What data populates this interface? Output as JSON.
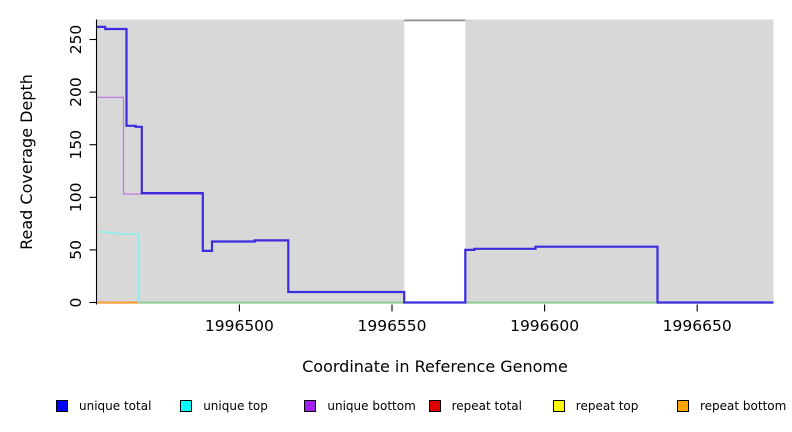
{
  "chart_data": {
    "type": "line",
    "subtype": "step-coverage-plot",
    "title": "",
    "xlabel": "Coordinate in Reference Genome",
    "ylabel": "Read Coverage Depth",
    "xlim": [
      1996453,
      1996675
    ],
    "ylim": [
      0,
      269
    ],
    "xticks": [
      1996500,
      1996550,
      1996600,
      1996650
    ],
    "yticks": [
      0,
      50,
      100,
      150,
      200,
      250
    ],
    "grid": "off",
    "plot_bg_color": "#d8d8d8",
    "axis_color": "#000000",
    "zero_line_color": "#93cd93",
    "coverage_regions": [
      [
        1996453,
        1996554
      ],
      [
        1996574,
        1996675
      ]
    ],
    "gap_region": {
      "x": [
        1996554,
        1996574
      ],
      "cap_color": "#8f8f8f"
    },
    "series": [
      {
        "name": "repeat total",
        "key": "repeat-total",
        "color": "#de0000",
        "width": 1.3,
        "points": [
          [
            1996453,
            0
          ]
        ],
        "end": 1996675
      },
      {
        "name": "repeat top",
        "key": "repeat-top",
        "color": "#ffff00",
        "width": 1.3,
        "points": [
          [
            1996453,
            0
          ]
        ],
        "end": 1996675
      },
      {
        "name": "repeat bottom",
        "key": "repeat-bottom",
        "color": "#ff9d2b",
        "width": 2,
        "points": [
          [
            1996453,
            0
          ]
        ],
        "end": 1996467
      },
      {
        "name": "unique bottom",
        "key": "unique-bottom",
        "color": "#bd7ce4",
        "width": 1.3,
        "points": [
          [
            1996453,
            195
          ],
          [
            1996462,
            103
          ],
          [
            1996488,
            49
          ],
          [
            1996491,
            58
          ],
          [
            1996505,
            59
          ],
          [
            1996516,
            10
          ],
          [
            1996554,
            0
          ],
          [
            1996574,
            50
          ],
          [
            1996577,
            51
          ],
          [
            1996597,
            53
          ],
          [
            1996637,
            0
          ]
        ],
        "end": 1996675
      },
      {
        "name": "unique top",
        "key": "unique-top",
        "color": "#8dedec",
        "width": 1.6,
        "points": [
          [
            1996453,
            67
          ],
          [
            1996457,
            66
          ],
          [
            1996460,
            65
          ],
          [
            1996467,
            0
          ]
        ],
        "end": 1996467
      },
      {
        "name": "unique total",
        "key": "unique-total",
        "color": "#3d2bde",
        "width": 2.2,
        "points": [
          [
            1996453,
            262
          ],
          [
            1996456,
            260
          ],
          [
            1996463,
            168
          ],
          [
            1996466,
            167
          ],
          [
            1996468,
            104
          ],
          [
            1996488,
            49
          ],
          [
            1996491,
            58
          ],
          [
            1996505,
            59
          ],
          [
            1996516,
            10
          ],
          [
            1996554,
            0
          ],
          [
            1996574,
            50
          ],
          [
            1996577,
            51
          ],
          [
            1996597,
            53
          ],
          [
            1996637,
            0
          ]
        ],
        "end": 1996675
      }
    ],
    "legend": {
      "position": "bottom",
      "items": [
        {
          "label": "unique total",
          "color": "#0000ff"
        },
        {
          "label": "unique top",
          "color": "#00ffff"
        },
        {
          "label": "unique bottom",
          "color": "#a020f0"
        },
        {
          "label": "repeat total",
          "color": "#de0000"
        },
        {
          "label": "repeat top",
          "color": "#ffff00"
        },
        {
          "label": "repeat bottom",
          "color": "#ffa500"
        }
      ]
    }
  }
}
